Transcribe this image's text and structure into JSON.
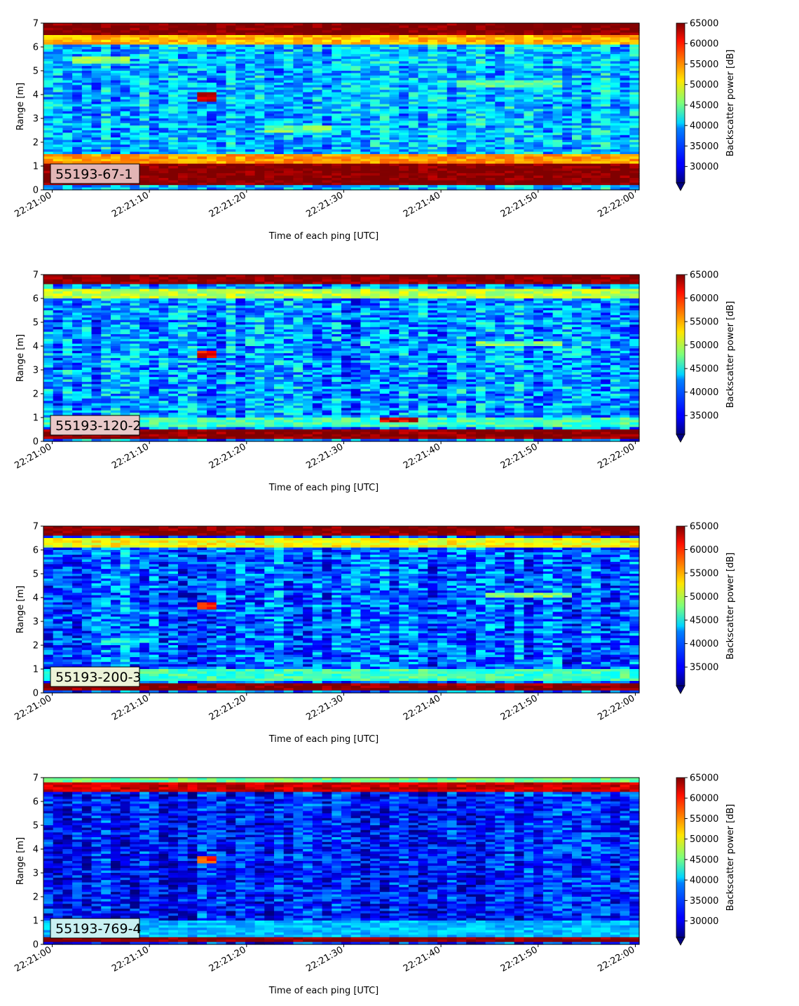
{
  "chart_data": [
    {
      "type": "heatmap",
      "label": "55193-67-1",
      "label_box_color": "#e2b5b5",
      "xlabel": "Time of each ping [UTC]",
      "ylabel": "Range [m]",
      "xticks": [
        "22:21:00",
        "22:21:10",
        "22:21:20",
        "22:21:30",
        "22:21:40",
        "22:21:50",
        "22:22:00"
      ],
      "yticks": [
        "0",
        "1",
        "2",
        "3",
        "4",
        "5",
        "6",
        "7"
      ],
      "xlim": [
        "22:20:59.1",
        "22:22:00.4"
      ],
      "ylim": [
        0,
        7
      ],
      "colorbar": {
        "label": "Backscatter power [dB]",
        "ticks": [
          30000,
          35000,
          40000,
          45000,
          50000,
          55000,
          60000,
          65000
        ],
        "range": [
          26000,
          65000
        ],
        "colormap": "jet"
      },
      "features": [
        {
          "range": [
            0.2,
            1.1
          ],
          "level": 65000
        },
        {
          "range": [
            1.1,
            1.5
          ],
          "level": 54000
        },
        {
          "range": [
            6.5,
            7.0
          ],
          "level": 65000
        },
        {
          "range": [
            6.1,
            6.5
          ],
          "level": 53000
        },
        {
          "range": [
            3.7,
            4.1
          ],
          "time": [
            "22:21:14.5",
            "22:21:17"
          ],
          "level": 63000
        },
        {
          "range": [
            2.4,
            2.7
          ],
          "time": [
            "22:21:22",
            "22:21:29"
          ],
          "level": 45000
        },
        {
          "range": [
            4.3,
            4.6
          ],
          "time": [
            "22:21:42",
            "22:21:52"
          ],
          "level": 44000
        },
        {
          "range": [
            5.3,
            5.6
          ],
          "time": [
            "22:21:02",
            "22:21:08"
          ],
          "level": 46000
        }
      ]
    },
    {
      "type": "heatmap",
      "label": "55193-120-2",
      "label_box_color": "#e8c8c8",
      "xlabel": "Time of each ping [UTC]",
      "ylabel": "Range [m]",
      "xticks": [
        "22:21:00",
        "22:21:10",
        "22:21:20",
        "22:21:30",
        "22:21:40",
        "22:21:50",
        "22:22:00"
      ],
      "yticks": [
        "0",
        "1",
        "2",
        "3",
        "4",
        "5",
        "6",
        "7"
      ],
      "xlim": [
        "22:20:59.1",
        "22:22:00.4"
      ],
      "ylim": [
        0,
        7
      ],
      "colorbar": {
        "label": "Backscatter power [dB]",
        "ticks": [
          35000,
          40000,
          45000,
          50000,
          55000,
          60000,
          65000
        ],
        "range": [
          31000,
          65000
        ],
        "colormap": "jet"
      },
      "features": [
        {
          "range": [
            0.1,
            0.5
          ],
          "level": 65000
        },
        {
          "range": [
            0.6,
            1.0
          ],
          "level": 46000
        },
        {
          "range": [
            6.6,
            7.0
          ],
          "level": 65000
        },
        {
          "range": [
            6.0,
            6.4
          ],
          "level": 50000
        },
        {
          "range": [
            3.5,
            3.8
          ],
          "time": [
            "22:21:14.5",
            "22:21:17"
          ],
          "level": 61000
        },
        {
          "range": [
            0.8,
            1.0
          ],
          "time": [
            "22:21:34",
            "22:21:38"
          ],
          "level": 62000
        },
        {
          "range": [
            4.0,
            4.2
          ],
          "time": [
            "22:21:44",
            "22:21:52"
          ],
          "level": 48000
        }
      ]
    },
    {
      "type": "heatmap",
      "label": "55193-200-3",
      "label_box_color": "#ecf3d8",
      "xlabel": "Time of each ping [UTC]",
      "ylabel": "Range [m]",
      "xticks": [
        "22:21:00",
        "22:21:10",
        "22:21:20",
        "22:21:30",
        "22:21:40",
        "22:21:50",
        "22:22:00"
      ],
      "yticks": [
        "0",
        "1",
        "2",
        "3",
        "4",
        "5",
        "6",
        "7"
      ],
      "xlim": [
        "22:20:59.1",
        "22:22:00.4"
      ],
      "ylim": [
        0,
        7
      ],
      "colorbar": {
        "label": "Backscatter power [dB]",
        "ticks": [
          35000,
          40000,
          45000,
          50000,
          55000,
          60000,
          65000
        ],
        "range": [
          31000,
          65000
        ],
        "colormap": "jet"
      },
      "features": [
        {
          "range": [
            0.1,
            0.4
          ],
          "level": 65000
        },
        {
          "range": [
            0.5,
            1.0
          ],
          "level": 46000
        },
        {
          "range": [
            6.6,
            7.0
          ],
          "level": 65000
        },
        {
          "range": [
            6.1,
            6.5
          ],
          "level": 52000
        },
        {
          "range": [
            3.5,
            3.8
          ],
          "time": [
            "22:21:14.5",
            "22:21:17"
          ],
          "level": 60000
        },
        {
          "range": [
            4.0,
            4.2
          ],
          "time": [
            "22:21:45",
            "22:21:53"
          ],
          "level": 48000
        },
        {
          "range": [
            2.1,
            2.3
          ],
          "time": [
            "22:21:05",
            "22:21:11"
          ],
          "level": 44000
        }
      ]
    },
    {
      "type": "heatmap",
      "label": "55193-769-4",
      "label_box_color": "#c8f0f2",
      "xlabel": "Time of each ping [UTC]",
      "ylabel": "Range [m]",
      "xticks": [
        "22:21:00",
        "22:21:10",
        "22:21:20",
        "22:21:30",
        "22:21:40",
        "22:21:50",
        "22:22:00"
      ],
      "yticks": [
        "0",
        "1",
        "2",
        "3",
        "4",
        "5",
        "6",
        "7"
      ],
      "xlim": [
        "22:20:59.1",
        "22:22:00.4"
      ],
      "ylim": [
        0,
        7
      ],
      "colorbar": {
        "label": "Backscatter power [dB]",
        "ticks": [
          30000,
          35000,
          40000,
          45000,
          50000,
          55000,
          60000,
          65000
        ],
        "range": [
          26000,
          65000
        ],
        "colormap": "jet"
      },
      "features": [
        {
          "range": [
            0.1,
            0.35
          ],
          "level": 65000
        },
        {
          "range": [
            0.35,
            1.0
          ],
          "level": 38000
        },
        {
          "range": [
            6.4,
            6.8
          ],
          "level": 62000
        },
        {
          "range": [
            6.8,
            7.0
          ],
          "level": 45000
        },
        {
          "range": [
            3.4,
            3.7
          ],
          "time": [
            "22:21:15",
            "22:21:17"
          ],
          "level": 58000
        }
      ]
    }
  ]
}
